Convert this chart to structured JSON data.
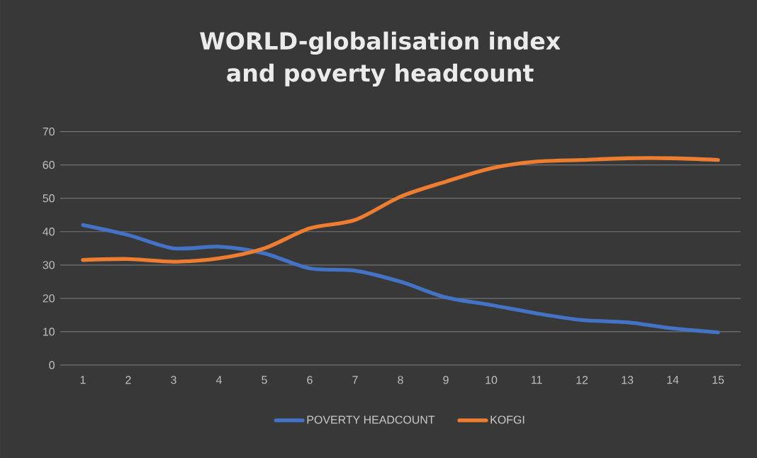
{
  "chart_data": {
    "type": "line",
    "title": "WORLD-globalisation index and poverty headcount",
    "categories": [
      "1",
      "2",
      "3",
      "4",
      "5",
      "6",
      "7",
      "8",
      "9",
      "10",
      "11",
      "12",
      "13",
      "14",
      "15"
    ],
    "series": [
      {
        "name": "POVERTY HEADCOUNT",
        "color": "#4472c4",
        "values": [
          42,
          39,
          35,
          35.5,
          33.5,
          29,
          28.3,
          25,
          20.3,
          18,
          15.5,
          13.5,
          12.8,
          11,
          9.8
        ]
      },
      {
        "name": "KOFGI",
        "color": "#ed7d31",
        "values": [
          31.5,
          31.8,
          31,
          32,
          35,
          41,
          43.5,
          50.5,
          55,
          59,
          61,
          61.5,
          62,
          62,
          61.5
        ]
      }
    ],
    "ylim": [
      0,
      70
    ],
    "yticks": [
      0,
      10,
      20,
      30,
      40,
      50,
      60,
      70
    ],
    "grid": "y",
    "legend": "bottom",
    "marker": "none",
    "line_style": "solid"
  }
}
